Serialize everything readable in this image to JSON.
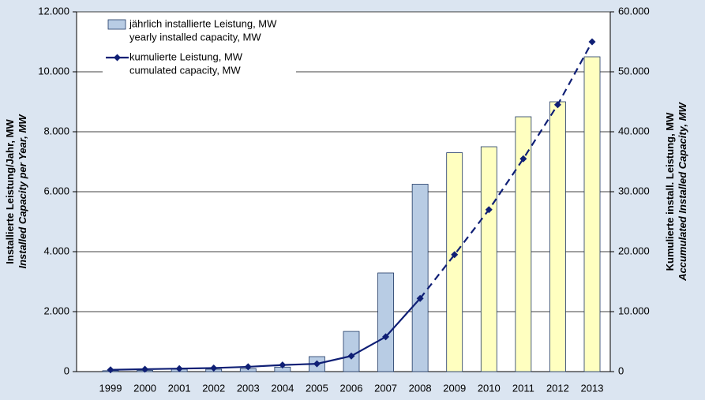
{
  "chart_data": {
    "type": "bar_line",
    "categories": [
      "1999",
      "2000",
      "2001",
      "2002",
      "2003",
      "2004",
      "2005",
      "2006",
      "2007",
      "2008",
      "2009",
      "2010",
      "2011",
      "2012",
      "2013"
    ],
    "ylabel": [
      "Installierte Leistung/Jahr, MW",
      "Installed Capacity per Year, MW"
    ],
    "y2label": [
      "Kumulierte install. Leistung, MW",
      "Accumulated Installed Capacity, MW"
    ],
    "ylim": [
      0,
      12000
    ],
    "yticks": [
      0,
      {
        "value": 2000,
        "label": "2.000"
      },
      {
        "value": 4000,
        "label": "4.000"
      },
      {
        "value": 6000,
        "label": "6.000"
      },
      {
        "value": 8000,
        "label": "8.000"
      },
      {
        "value": 10000,
        "label": "10.000"
      },
      {
        "value": 12000,
        "label": "12.000"
      }
    ],
    "y2lim": [
      0,
      60000
    ],
    "y2ticks": [
      0,
      {
        "value": 10000,
        "label": "10.000"
      },
      {
        "value": 20000,
        "label": "20.000"
      },
      {
        "value": 30000,
        "label": "30.000"
      },
      {
        "value": 40000,
        "label": "40.000"
      },
      {
        "value": 50000,
        "label": "50.000"
      },
      {
        "value": 60000,
        "label": "60.000"
      }
    ],
    "grid": true,
    "series": [
      {
        "name": "jährlich installierte Leistung, MW",
        "name_en": "yearly installed capacity, MW",
        "type": "bar",
        "colors": [
          "#b8cce4",
          "#b8cce4",
          "#b8cce4",
          "#b8cce4",
          "#b8cce4",
          "#b8cce4",
          "#b8cce4",
          "#b8cce4",
          "#b8cce4",
          "#b8cce4",
          "#ffffc0",
          "#ffffc0",
          "#ffffc0",
          "#ffffc0",
          "#ffffc0"
        ],
        "color": "#b8cce4",
        "values": [
          30,
          40,
          80,
          80,
          100,
          150,
          500,
          1340,
          3290,
          6250,
          7300,
          7500,
          8500,
          9000,
          10500
        ]
      },
      {
        "name": "kumulierte Leistung, MW",
        "name_en": "cumulated capacity, MW",
        "type": "line",
        "axis": "y2",
        "color": "#0f1f75",
        "dashed_from": "2008",
        "values": [
          300,
          400,
          500,
          600,
          800,
          1100,
          1300,
          2600,
          5800,
          12200,
          19500,
          27000,
          35500,
          44500,
          55000
        ]
      }
    ]
  }
}
